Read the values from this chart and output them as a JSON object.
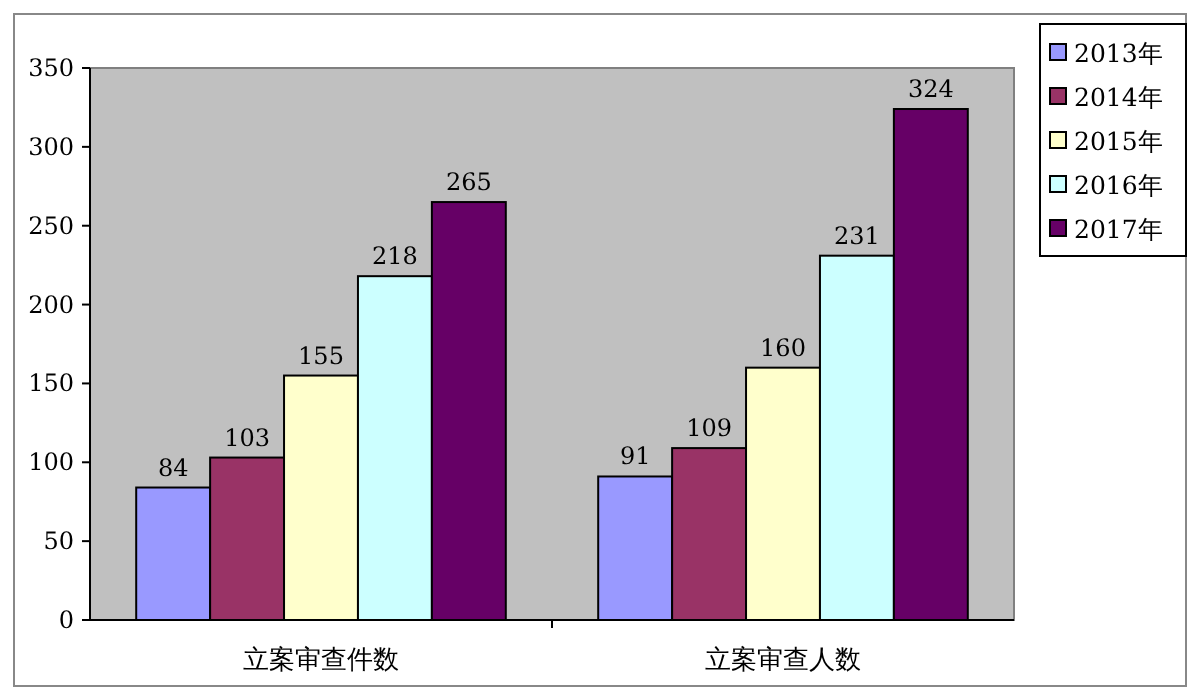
{
  "chart_data": {
    "type": "bar",
    "categories": [
      "立案审查件数",
      "立案审查人数"
    ],
    "series": [
      {
        "name": "2013年",
        "color": "#9999ff",
        "values": [
          84,
          91
        ]
      },
      {
        "name": "2014年",
        "color": "#993366",
        "values": [
          103,
          109
        ]
      },
      {
        "name": "2015年",
        "color": "#ffffcc",
        "values": [
          155,
          160
        ]
      },
      {
        "name": "2016年",
        "color": "#ccffff",
        "values": [
          218,
          231
        ]
      },
      {
        "name": "2017年",
        "color": "#660066",
        "values": [
          265,
          324
        ]
      }
    ],
    "ylim": [
      0,
      350
    ],
    "yticks": [
      0,
      50,
      100,
      150,
      200,
      250,
      300,
      350
    ],
    "data_labels": true,
    "legend": "right"
  }
}
